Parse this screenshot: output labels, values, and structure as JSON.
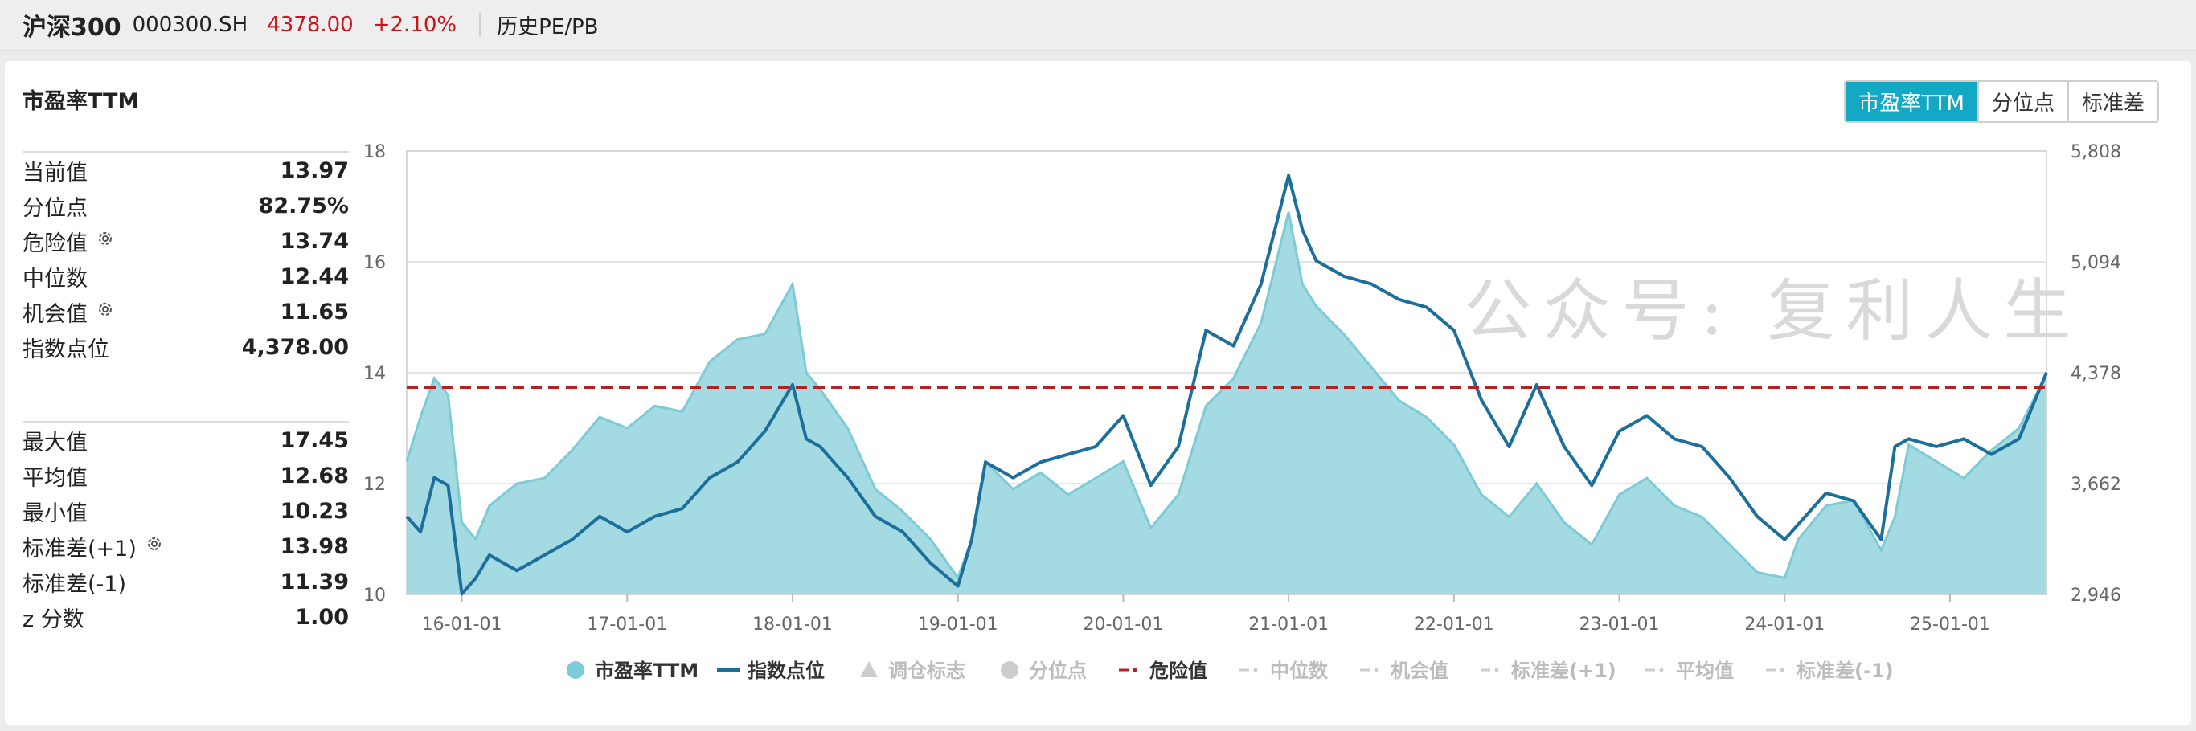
{
  "header": {
    "name": "沪深300",
    "code": "000300.SH",
    "price": "4378.00",
    "change": "+2.10%",
    "link": "历史PE/PB"
  },
  "panel": {
    "title": "市盈率TTM",
    "buttons": [
      "市盈率TTM",
      "分位点",
      "标准差"
    ],
    "active_button": 0
  },
  "stats_top": [
    {
      "label": "当前值",
      "value": "13.97",
      "gear": false
    },
    {
      "label": "分位点",
      "value": "82.75%",
      "gear": false
    },
    {
      "label": "危险值",
      "value": "13.74",
      "gear": true
    },
    {
      "label": "中位数",
      "value": "12.44",
      "gear": false
    },
    {
      "label": "机会值",
      "value": "11.65",
      "gear": true
    },
    {
      "label": "指数点位",
      "value": "4,378.00",
      "gear": false
    }
  ],
  "stats_bottom": [
    {
      "label": "最大值",
      "value": "17.45",
      "gear": false
    },
    {
      "label": "平均值",
      "value": "12.68",
      "gear": false
    },
    {
      "label": "最小值",
      "value": "10.23",
      "gear": false
    },
    {
      "label": "标准差(+1)",
      "value": "13.98",
      "gear": true
    },
    {
      "label": "标准差(-1)",
      "value": "11.39",
      "gear": false
    },
    {
      "label": "z 分数",
      "value": "1.00",
      "gear": false
    }
  ],
  "watermark": "公众号: 复利人生",
  "colors": {
    "pe_fill": "#9fd8e0",
    "pe_line": "#7ccbd6",
    "index_line": "#1d6f9b",
    "danger": "#b22222",
    "accent": "#13a8c4",
    "up": "#c9161d"
  },
  "chart_data": {
    "type": "area",
    "x_start": "2015-09",
    "x_end": "2025-08",
    "x_ticks": [
      "16-01-01",
      "17-01-01",
      "18-01-01",
      "19-01-01",
      "20-01-01",
      "21-01-01",
      "22-01-01",
      "23-01-01",
      "24-01-01",
      "25-01-01"
    ],
    "left_axis": {
      "ticks": [
        "18",
        "16",
        "14",
        "12",
        "10"
      ],
      "ylim": [
        10,
        18
      ]
    },
    "right_axis": {
      "ticks": [
        "5,808",
        "5,094",
        "4,378",
        "3,662",
        "2,946"
      ],
      "ylim": [
        2946,
        5808
      ]
    },
    "danger_value": 13.74,
    "series": [
      {
        "name": "市盈率TTM",
        "axis": "left",
        "x": [
          "2015-09",
          "2015-10",
          "2015-11",
          "2015-12",
          "2016-01",
          "2016-02",
          "2016-03",
          "2016-05",
          "2016-07",
          "2016-09",
          "2016-11",
          "2017-01",
          "2017-03",
          "2017-05",
          "2017-07",
          "2017-09",
          "2017-11",
          "2018-01",
          "2018-02",
          "2018-03",
          "2018-05",
          "2018-07",
          "2018-09",
          "2018-11",
          "2019-01",
          "2019-02",
          "2019-03",
          "2019-05",
          "2019-07",
          "2019-09",
          "2019-11",
          "2020-01",
          "2020-03",
          "2020-05",
          "2020-07",
          "2020-09",
          "2020-11",
          "2021-01",
          "2021-02",
          "2021-03",
          "2021-05",
          "2021-07",
          "2021-09",
          "2021-11",
          "2022-01",
          "2022-03",
          "2022-05",
          "2022-07",
          "2022-09",
          "2022-11",
          "2023-01",
          "2023-03",
          "2023-05",
          "2023-07",
          "2023-09",
          "2023-11",
          "2024-01",
          "2024-02",
          "2024-04",
          "2024-06",
          "2024-08",
          "2024-09",
          "2024-10",
          "2024-12",
          "2025-02",
          "2025-04",
          "2025-06",
          "2025-08"
        ],
        "values": [
          12.4,
          13.2,
          13.9,
          13.6,
          11.3,
          11.0,
          11.6,
          12.0,
          12.1,
          12.6,
          13.2,
          13.0,
          13.4,
          13.3,
          14.2,
          14.6,
          14.7,
          15.6,
          14.0,
          13.7,
          13.0,
          11.9,
          11.5,
          11.0,
          10.3,
          11.0,
          12.4,
          11.9,
          12.2,
          11.8,
          12.1,
          12.4,
          11.2,
          11.8,
          13.4,
          13.9,
          14.9,
          16.9,
          15.6,
          15.2,
          14.7,
          14.1,
          13.5,
          13.2,
          12.7,
          11.8,
          11.4,
          12.0,
          11.3,
          10.9,
          11.8,
          12.1,
          11.6,
          11.4,
          10.9,
          10.4,
          10.3,
          11.0,
          11.6,
          11.7,
          10.8,
          11.4,
          12.7,
          12.4,
          12.1,
          12.6,
          13.0,
          13.97
        ]
      },
      {
        "name": "指数点位",
        "axis": "right",
        "x": [
          "2015-09",
          "2015-10",
          "2015-11",
          "2015-12",
          "2016-01",
          "2016-02",
          "2016-03",
          "2016-05",
          "2016-07",
          "2016-09",
          "2016-11",
          "2017-01",
          "2017-03",
          "2017-05",
          "2017-07",
          "2017-09",
          "2017-11",
          "2018-01",
          "2018-02",
          "2018-03",
          "2018-05",
          "2018-07",
          "2018-09",
          "2018-11",
          "2019-01",
          "2019-02",
          "2019-03",
          "2019-05",
          "2019-07",
          "2019-09",
          "2019-11",
          "2020-01",
          "2020-03",
          "2020-05",
          "2020-07",
          "2020-09",
          "2020-11",
          "2021-01",
          "2021-02",
          "2021-03",
          "2021-05",
          "2021-07",
          "2021-09",
          "2021-11",
          "2022-01",
          "2022-03",
          "2022-05",
          "2022-07",
          "2022-09",
          "2022-11",
          "2023-01",
          "2023-03",
          "2023-05",
          "2023-07",
          "2023-09",
          "2023-11",
          "2024-01",
          "2024-02",
          "2024-04",
          "2024-06",
          "2024-08",
          "2024-09",
          "2024-10",
          "2024-12",
          "2025-02",
          "2025-04",
          "2025-06",
          "2025-08"
        ],
        "values": [
          3450,
          3350,
          3700,
          3650,
          2950,
          3050,
          3200,
          3100,
          3200,
          3300,
          3450,
          3350,
          3450,
          3500,
          3700,
          3800,
          4000,
          4300,
          3950,
          3900,
          3700,
          3450,
          3350,
          3150,
          3000,
          3300,
          3800,
          3700,
          3800,
          3850,
          3900,
          4100,
          3650,
          3900,
          4650,
          4550,
          4950,
          5650,
          5300,
          5100,
          5000,
          4950,
          4850,
          4800,
          4650,
          4200,
          3900,
          4300,
          3900,
          3650,
          4000,
          4100,
          3950,
          3900,
          3700,
          3450,
          3300,
          3400,
          3600,
          3550,
          3300,
          3900,
          3950,
          3900,
          3950,
          3850,
          3950,
          4378
        ]
      }
    ]
  },
  "legend": [
    {
      "label": "市盈率TTM",
      "marker": "circle",
      "color": "#7ccbd6",
      "active": true
    },
    {
      "label": "指数点位",
      "marker": "line",
      "color": "#1d6f9b",
      "active": true
    },
    {
      "label": "调仓标志",
      "marker": "triangle",
      "color": "#cccccc",
      "active": false
    },
    {
      "label": "分位点",
      "marker": "circle",
      "color": "#cccccc",
      "active": false
    },
    {
      "label": "危险值",
      "marker": "dashdot",
      "color": "#b22222",
      "active": true
    },
    {
      "label": "中位数",
      "marker": "dashdot",
      "color": "#cccccc",
      "active": false
    },
    {
      "label": "机会值",
      "marker": "dashdot",
      "color": "#cccccc",
      "active": false
    },
    {
      "label": "标准差(+1)",
      "marker": "dashdot",
      "color": "#cccccc",
      "active": false
    },
    {
      "label": "平均值",
      "marker": "dashdot",
      "color": "#cccccc",
      "active": false
    },
    {
      "label": "标准差(-1)",
      "marker": "dashdot",
      "color": "#cccccc",
      "active": false
    }
  ]
}
